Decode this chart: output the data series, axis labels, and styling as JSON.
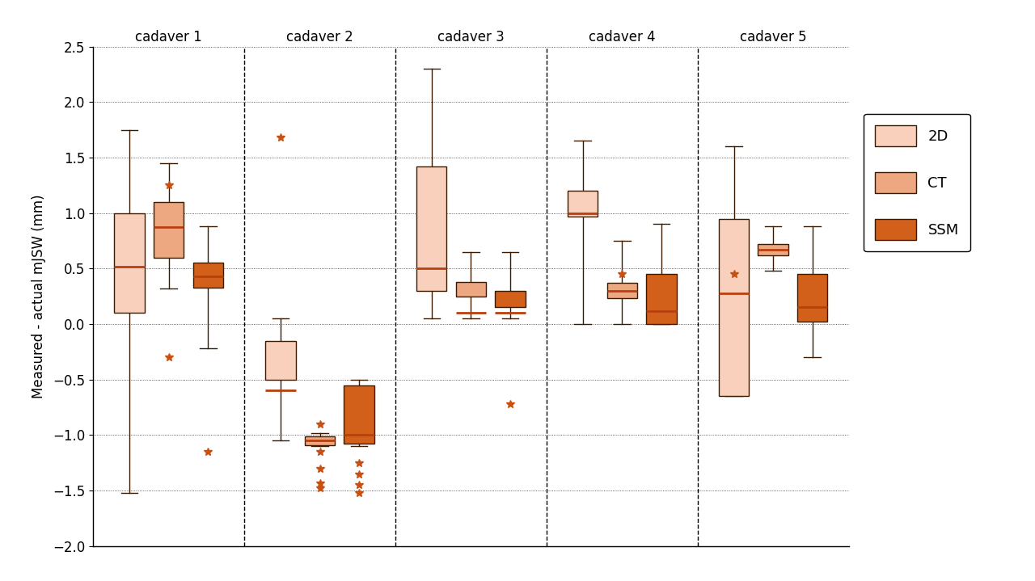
{
  "cadavers": [
    "cadaver 1",
    "cadaver 2",
    "cadaver 3",
    "cadaver 4",
    "cadaver 5"
  ],
  "methods": [
    "2D",
    "CT",
    "SSM"
  ],
  "colors": {
    "2D": "#f9d0bc",
    "CT": "#eda882",
    "SSM": "#d2601a"
  },
  "edge_color": "#3a1a00",
  "median_color": "#b84010",
  "flier_color": "#c85010",
  "ylabel": "Measured - actual mJSW (mm)",
  "ylim": [
    -2.0,
    2.5
  ],
  "yticks": [
    -2.0,
    -1.5,
    -1.0,
    -0.5,
    0.0,
    0.5,
    1.0,
    1.5,
    2.0,
    2.5
  ],
  "boxplot_stats": {
    "cadaver1_2D": {
      "med": 0.52,
      "q1": 0.1,
      "q3": 1.0,
      "whislo": -1.52,
      "whishi": 1.75
    },
    "cadaver1_CT": {
      "med": 0.87,
      "q1": 0.6,
      "q3": 1.1,
      "whislo": 0.32,
      "whishi": 1.45
    },
    "cadaver1_SSM": {
      "med": 0.43,
      "q1": 0.33,
      "q3": 0.55,
      "whislo": -0.22,
      "whishi": 0.88
    },
    "cadaver2_2D": {
      "med": -0.6,
      "q1": -0.5,
      "q3": -0.15,
      "whislo": -1.05,
      "whishi": 0.05
    },
    "cadaver2_CT": {
      "med": -1.05,
      "q1": -1.09,
      "q3": -1.01,
      "whislo": -1.1,
      "whishi": -0.98
    },
    "cadaver2_SSM": {
      "med": -1.0,
      "q1": -1.08,
      "q3": -0.55,
      "whislo": -1.1,
      "whishi": -0.5
    },
    "cadaver3_2D": {
      "med": 0.5,
      "q1": 0.3,
      "q3": 1.42,
      "whislo": 0.05,
      "whishi": 2.3
    },
    "cadaver3_CT": {
      "med": 0.1,
      "q1": 0.25,
      "q3": 0.38,
      "whislo": 0.05,
      "whishi": 0.65
    },
    "cadaver3_SSM": {
      "med": 0.1,
      "q1": 0.15,
      "q3": 0.3,
      "whislo": 0.05,
      "whishi": 0.65
    },
    "cadaver4_2D": {
      "med": 1.0,
      "q1": 0.97,
      "q3": 1.2,
      "whislo": 0.0,
      "whishi": 1.65
    },
    "cadaver4_CT": {
      "med": 0.3,
      "q1": 0.23,
      "q3": 0.37,
      "whislo": 0.0,
      "whishi": 0.75
    },
    "cadaver4_SSM": {
      "med": 0.12,
      "q1": 0.0,
      "q3": 0.45,
      "whislo": 0.0,
      "whishi": 0.9
    },
    "cadaver5_2D": {
      "med": 0.28,
      "q1": -0.65,
      "q3": 0.95,
      "whislo": -0.65,
      "whishi": 1.6
    },
    "cadaver5_CT": {
      "med": 0.67,
      "q1": 0.62,
      "q3": 0.72,
      "whislo": 0.48,
      "whishi": 0.88
    },
    "cadaver5_SSM": {
      "med": 0.15,
      "q1": 0.02,
      "q3": 0.45,
      "whislo": -0.3,
      "whishi": 0.88
    }
  },
  "fliers": {
    "cadaver1_CT": [
      1.25,
      -0.3
    ],
    "cadaver1_SSM": [
      -1.15
    ],
    "cadaver2_2D": [
      1.68
    ],
    "cadaver2_CT": [
      -0.9,
      -1.15,
      -1.3,
      -1.43,
      -1.48
    ],
    "cadaver2_SSM": [
      -1.25,
      -1.35,
      -1.45,
      -1.52
    ],
    "cadaver3_SSM": [
      -0.72
    ],
    "cadaver4_CT": [
      0.45
    ],
    "cadaver5_2D": [
      0.45
    ]
  },
  "box_width": 0.2,
  "offsets": {
    "2D": -0.26,
    "CT": 0.0,
    "SSM": 0.26
  },
  "figsize": [
    12.8,
    7.19
  ],
  "dpi": 100
}
